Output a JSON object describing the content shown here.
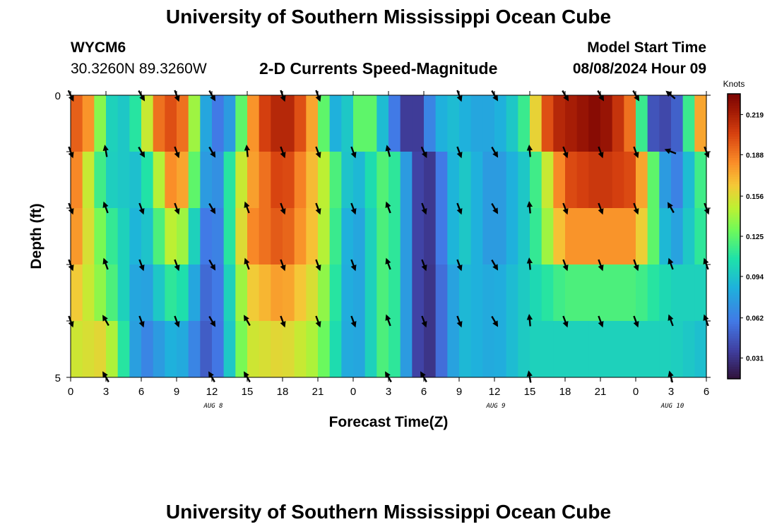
{
  "header": {
    "title": "University of Southern Mississippi Ocean Cube",
    "station": "WYCM6",
    "coords": "30.3260N  89.3260W",
    "subtitle": "2-D Currents Speed-Magnitude",
    "model_start_label": "Model Start Time",
    "model_start_value": "08/08/2024 Hour 09"
  },
  "footer": {
    "title": "University of Southern Mississippi Ocean Cube"
  },
  "colorbar": {
    "label": "Knots",
    "ticks": [
      "0.219",
      "0.188",
      "0.156",
      "0.125",
      "0.094",
      "0.062",
      "0.031"
    ],
    "tick_values": [
      0.219,
      0.188,
      0.156,
      0.125,
      0.094,
      0.062,
      0.031
    ],
    "min": 0.015,
    "max": 0.235
  },
  "chart_data": {
    "type": "heatmap",
    "title": "2-D Currents Speed-Magnitude",
    "xlabel": "Forecast Time(Z)",
    "ylabel": "Depth (ft)",
    "x_range_hours": [
      0,
      54
    ],
    "x_tick_labels": [
      "0",
      "3",
      "6",
      "9",
      "12",
      "15",
      "18",
      "21",
      "0",
      "3",
      "6",
      "9",
      "12",
      "15",
      "18",
      "21",
      "0",
      "3",
      "6"
    ],
    "date_labels": [
      {
        "text": "AUG 8",
        "hour": 12
      },
      {
        "text": "AUG 9",
        "hour": 36
      },
      {
        "text": "AUG 10",
        "hour": 51
      }
    ],
    "y_tick_labels": [
      "0",
      "5"
    ],
    "y_range": [
      0,
      5
    ],
    "depth_levels": 5,
    "units": "Knots",
    "speed_by_depth_band": [
      {
        "depth_band": "0-1 ft",
        "hours": [
          0,
          1,
          2,
          3,
          4,
          5,
          6,
          7,
          8,
          9,
          10,
          11,
          12,
          13,
          14,
          15,
          16,
          17,
          18,
          19,
          20,
          21,
          22,
          23,
          24,
          25,
          26,
          27,
          28,
          29,
          30,
          31,
          32,
          33,
          34,
          35,
          36,
          37,
          38,
          39,
          40,
          41,
          42,
          43,
          44,
          45,
          46,
          47,
          48,
          49,
          50,
          51,
          52,
          53,
          54
        ],
        "values": [
          0.19,
          0.2,
          0.16,
          0.11,
          0.09,
          0.1,
          0.12,
          0.18,
          0.2,
          0.2,
          0.18,
          0.1,
          0.06,
          0.06,
          0.09,
          0.16,
          0.2,
          0.21,
          0.22,
          0.21,
          0.19,
          0.16,
          0.09,
          0.08,
          0.11,
          0.14,
          0.11,
          0.07,
          0.05,
          0.02,
          0.05,
          0.08,
          0.09,
          0.09,
          0.08,
          0.08,
          0.08,
          0.09,
          0.1,
          0.13,
          0.19,
          0.21,
          0.22,
          0.22,
          0.23,
          0.23,
          0.22,
          0.2,
          0.18,
          0.05,
          0.04,
          0.04,
          0.06,
          0.17,
          0.18
        ]
      },
      {
        "depth_band": "1-2 ft",
        "hours": [
          0,
          3,
          6,
          9,
          12,
          15,
          18,
          21,
          24,
          27,
          30,
          33,
          36,
          39,
          42,
          45,
          48,
          51,
          54
        ],
        "values": [
          0.2,
          0.1,
          0.09,
          0.2,
          0.05,
          0.17,
          0.21,
          0.16,
          0.08,
          0.13,
          0.02,
          0.1,
          0.07,
          0.1,
          0.2,
          0.21,
          0.2,
          0.05,
          0.13
        ]
      },
      {
        "depth_band": "2-3 ft",
        "hours": [
          0,
          3,
          6,
          9,
          12,
          15,
          18,
          21,
          24,
          27,
          30,
          33,
          36,
          39,
          42,
          45,
          48,
          51,
          54
        ],
        "values": [
          0.19,
          0.12,
          0.08,
          0.16,
          0.04,
          0.18,
          0.2,
          0.16,
          0.07,
          0.13,
          0.02,
          0.1,
          0.07,
          0.1,
          0.18,
          0.18,
          0.18,
          0.07,
          0.12
        ]
      },
      {
        "depth_band": "3-4 ft",
        "hours": [
          0,
          3,
          6,
          9,
          12,
          15,
          18,
          21,
          24,
          27,
          30,
          33,
          36,
          39,
          42,
          45,
          48,
          51,
          54
        ],
        "values": [
          0.17,
          0.13,
          0.07,
          0.12,
          0.04,
          0.16,
          0.18,
          0.15,
          0.07,
          0.13,
          0.02,
          0.09,
          0.08,
          0.1,
          0.12,
          0.12,
          0.12,
          0.1,
          0.1
        ]
      },
      {
        "depth_band": "4-5 ft",
        "hours": [
          0,
          3,
          6,
          9,
          12,
          15,
          18,
          21,
          24,
          27,
          30,
          33,
          36,
          39,
          42,
          45,
          48,
          51,
          54
        ],
        "values": [
          0.15,
          0.16,
          0.06,
          0.09,
          0.04,
          0.15,
          0.16,
          0.14,
          0.07,
          0.13,
          0.02,
          0.09,
          0.08,
          0.1,
          0.1,
          0.1,
          0.1,
          0.1,
          0.09
        ]
      }
    ],
    "vectors": {
      "hours": [
        0,
        3,
        6,
        9,
        12,
        15,
        18,
        21,
        24,
        27,
        30,
        33,
        36,
        39,
        42,
        45,
        48,
        51,
        54
      ],
      "depths_ft": [
        0,
        1,
        2,
        3,
        4,
        5
      ],
      "angles_deg": [
        [
          155,
          null,
          150,
          160,
          150,
          null,
          160,
          160,
          null,
          null,
          null,
          160,
          150,
          null,
          150,
          150,
          150,
          310,
          null
        ],
        [
          160,
          350,
          150,
          160,
          150,
          355,
          160,
          160,
          160,
          345,
          155,
          160,
          150,
          355,
          160,
          160,
          160,
          290,
          160
        ],
        [
          160,
          340,
          160,
          160,
          150,
          340,
          160,
          160,
          160,
          340,
          160,
          160,
          150,
          355,
          160,
          160,
          160,
          330,
          160
        ],
        [
          160,
          340,
          160,
          160,
          150,
          340,
          160,
          160,
          160,
          340,
          160,
          160,
          150,
          355,
          160,
          160,
          160,
          340,
          340
        ],
        [
          160,
          330,
          160,
          160,
          150,
          330,
          160,
          160,
          160,
          340,
          160,
          160,
          150,
          355,
          160,
          160,
          160,
          340,
          340
        ],
        [
          null,
          330,
          null,
          null,
          330,
          330,
          null,
          null,
          null,
          330,
          330,
          null,
          null,
          350,
          null,
          null,
          null,
          345,
          null
        ]
      ]
    }
  }
}
